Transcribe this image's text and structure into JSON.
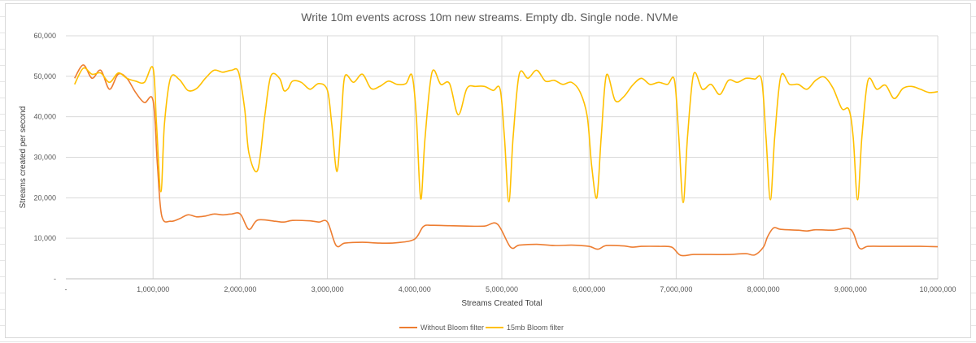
{
  "chart_data": {
    "type": "line",
    "title": "Write 10m events across 10m new streams. Empty db. Single node. NVMe",
    "xlabel": "Streams Created Total",
    "ylabel": "Streams created per second",
    "xlim": [
      0,
      10000000
    ],
    "ylim": [
      0,
      60000
    ],
    "x_tick_values": [
      0,
      1000000,
      2000000,
      3000000,
      4000000,
      5000000,
      6000000,
      7000000,
      8000000,
      9000000,
      10000000
    ],
    "x_tick_labels": [
      "-",
      "1,000,000",
      "2,000,000",
      "3,000,000",
      "4,000,000",
      "5,000,000",
      "6,000,000",
      "7,000,000",
      "8,000,000",
      "9,000,000",
      "10,000,000"
    ],
    "y_tick_values": [
      0,
      10000,
      20000,
      30000,
      40000,
      50000,
      60000
    ],
    "y_tick_labels": [
      "-",
      "10,000",
      "20,000",
      "30,000",
      "40,000",
      "50,000",
      "60,000"
    ],
    "grid": true,
    "legend_position": "bottom",
    "series": [
      {
        "name": "Without Bloom filter",
        "color": "#ed7d31",
        "points": [
          [
            100000,
            49500
          ],
          [
            200000,
            52800
          ],
          [
            300000,
            49500
          ],
          [
            400000,
            51500
          ],
          [
            500000,
            46800
          ],
          [
            600000,
            50500
          ],
          [
            700000,
            49500
          ],
          [
            800000,
            46000
          ],
          [
            900000,
            43500
          ],
          [
            1000000,
            44000
          ],
          [
            1050000,
            28000
          ],
          [
            1100000,
            15500
          ],
          [
            1200000,
            14200
          ],
          [
            1300000,
            14800
          ],
          [
            1400000,
            15800
          ],
          [
            1500000,
            15300
          ],
          [
            1600000,
            15500
          ],
          [
            1700000,
            16000
          ],
          [
            1800000,
            15800
          ],
          [
            1900000,
            16000
          ],
          [
            2000000,
            16000
          ],
          [
            2100000,
            12200
          ],
          [
            2200000,
            14500
          ],
          [
            2400000,
            14200
          ],
          [
            2500000,
            14000
          ],
          [
            2600000,
            14400
          ],
          [
            2800000,
            14300
          ],
          [
            2900000,
            14000
          ],
          [
            3000000,
            14000
          ],
          [
            3100000,
            8200
          ],
          [
            3200000,
            8800
          ],
          [
            3400000,
            9000
          ],
          [
            3600000,
            8800
          ],
          [
            3800000,
            8900
          ],
          [
            4000000,
            9800
          ],
          [
            4100000,
            12900
          ],
          [
            4200000,
            13200
          ],
          [
            4400000,
            13100
          ],
          [
            4600000,
            13000
          ],
          [
            4800000,
            13000
          ],
          [
            4950000,
            13500
          ],
          [
            5100000,
            7800
          ],
          [
            5200000,
            8300
          ],
          [
            5400000,
            8500
          ],
          [
            5600000,
            8200
          ],
          [
            5800000,
            8300
          ],
          [
            6000000,
            8000
          ],
          [
            6100000,
            7300
          ],
          [
            6200000,
            8200
          ],
          [
            6400000,
            8100
          ],
          [
            6500000,
            7800
          ],
          [
            6600000,
            8000
          ],
          [
            6800000,
            8000
          ],
          [
            6950000,
            7800
          ],
          [
            7050000,
            5800
          ],
          [
            7200000,
            6000
          ],
          [
            7400000,
            6000
          ],
          [
            7600000,
            6000
          ],
          [
            7800000,
            6200
          ],
          [
            7900000,
            5900
          ],
          [
            8000000,
            7800
          ],
          [
            8050000,
            10500
          ],
          [
            8120000,
            12600
          ],
          [
            8200000,
            12200
          ],
          [
            8400000,
            12000
          ],
          [
            8500000,
            11800
          ],
          [
            8600000,
            12100
          ],
          [
            8800000,
            12000
          ],
          [
            9000000,
            12200
          ],
          [
            9100000,
            7600
          ],
          [
            9200000,
            8000
          ],
          [
            9400000,
            8000
          ],
          [
            9600000,
            8000
          ],
          [
            9800000,
            8000
          ],
          [
            10000000,
            7900
          ]
        ]
      },
      {
        "name": "15mb Bloom filter",
        "color": "#ffc000",
        "points": [
          [
            100000,
            48000
          ],
          [
            200000,
            52000
          ],
          [
            300000,
            50500
          ],
          [
            400000,
            50800
          ],
          [
            500000,
            48500
          ],
          [
            600000,
            50800
          ],
          [
            700000,
            49500
          ],
          [
            800000,
            48800
          ],
          [
            900000,
            48500
          ],
          [
            1000000,
            52000
          ],
          [
            1040000,
            38000
          ],
          [
            1090000,
            21500
          ],
          [
            1130000,
            38000
          ],
          [
            1200000,
            49500
          ],
          [
            1300000,
            49200
          ],
          [
            1400000,
            46500
          ],
          [
            1500000,
            47000
          ],
          [
            1600000,
            49500
          ],
          [
            1700000,
            51500
          ],
          [
            1800000,
            51000
          ],
          [
            1900000,
            51500
          ],
          [
            1980000,
            51000
          ],
          [
            2050000,
            42000
          ],
          [
            2100000,
            31000
          ],
          [
            2200000,
            26800
          ],
          [
            2280000,
            40000
          ],
          [
            2350000,
            50000
          ],
          [
            2450000,
            49500
          ],
          [
            2500000,
            46500
          ],
          [
            2550000,
            47000
          ],
          [
            2600000,
            48800
          ],
          [
            2700000,
            48500
          ],
          [
            2800000,
            46800
          ],
          [
            2900000,
            48200
          ],
          [
            3000000,
            46500
          ],
          [
            3050000,
            38000
          ],
          [
            3110000,
            26500
          ],
          [
            3160000,
            40000
          ],
          [
            3200000,
            50000
          ],
          [
            3300000,
            48500
          ],
          [
            3400000,
            50500
          ],
          [
            3500000,
            47000
          ],
          [
            3600000,
            47500
          ],
          [
            3700000,
            48800
          ],
          [
            3800000,
            48000
          ],
          [
            3900000,
            48200
          ],
          [
            3970000,
            50200
          ],
          [
            4020000,
            40000
          ],
          [
            4070000,
            19700
          ],
          [
            4120000,
            35000
          ],
          [
            4200000,
            51000
          ],
          [
            4300000,
            48000
          ],
          [
            4400000,
            48200
          ],
          [
            4500000,
            40500
          ],
          [
            4600000,
            47000
          ],
          [
            4700000,
            47500
          ],
          [
            4800000,
            47500
          ],
          [
            4900000,
            46500
          ],
          [
            4980000,
            46800
          ],
          [
            5030000,
            35000
          ],
          [
            5080000,
            19000
          ],
          [
            5130000,
            35000
          ],
          [
            5200000,
            50500
          ],
          [
            5300000,
            49500
          ],
          [
            5400000,
            51500
          ],
          [
            5500000,
            48800
          ],
          [
            5600000,
            49000
          ],
          [
            5700000,
            48000
          ],
          [
            5800000,
            48500
          ],
          [
            5900000,
            46000
          ],
          [
            5980000,
            40000
          ],
          [
            6030000,
            28000
          ],
          [
            6090000,
            20000
          ],
          [
            6140000,
            35000
          ],
          [
            6200000,
            50300
          ],
          [
            6300000,
            44000
          ],
          [
            6400000,
            45000
          ],
          [
            6500000,
            47800
          ],
          [
            6600000,
            49500
          ],
          [
            6700000,
            48000
          ],
          [
            6800000,
            48500
          ],
          [
            6900000,
            48000
          ],
          [
            6980000,
            49000
          ],
          [
            7030000,
            35000
          ],
          [
            7080000,
            18800
          ],
          [
            7130000,
            35000
          ],
          [
            7200000,
            50500
          ],
          [
            7300000,
            46800
          ],
          [
            7400000,
            48000
          ],
          [
            7500000,
            45500
          ],
          [
            7600000,
            49000
          ],
          [
            7700000,
            48500
          ],
          [
            7800000,
            49500
          ],
          [
            7900000,
            49300
          ],
          [
            7980000,
            49000
          ],
          [
            8030000,
            35000
          ],
          [
            8080000,
            19500
          ],
          [
            8130000,
            35000
          ],
          [
            8200000,
            50000
          ],
          [
            8300000,
            48000
          ],
          [
            8400000,
            48000
          ],
          [
            8500000,
            46800
          ],
          [
            8600000,
            49000
          ],
          [
            8700000,
            49800
          ],
          [
            8800000,
            47000
          ],
          [
            8900000,
            42000
          ],
          [
            8980000,
            41800
          ],
          [
            9030000,
            35000
          ],
          [
            9080000,
            19500
          ],
          [
            9130000,
            35000
          ],
          [
            9200000,
            49000
          ],
          [
            9300000,
            46800
          ],
          [
            9400000,
            47800
          ],
          [
            9500000,
            44500
          ],
          [
            9600000,
            47000
          ],
          [
            9700000,
            47500
          ],
          [
            9800000,
            46800
          ],
          [
            9900000,
            46000
          ],
          [
            10000000,
            46200
          ]
        ]
      }
    ]
  }
}
